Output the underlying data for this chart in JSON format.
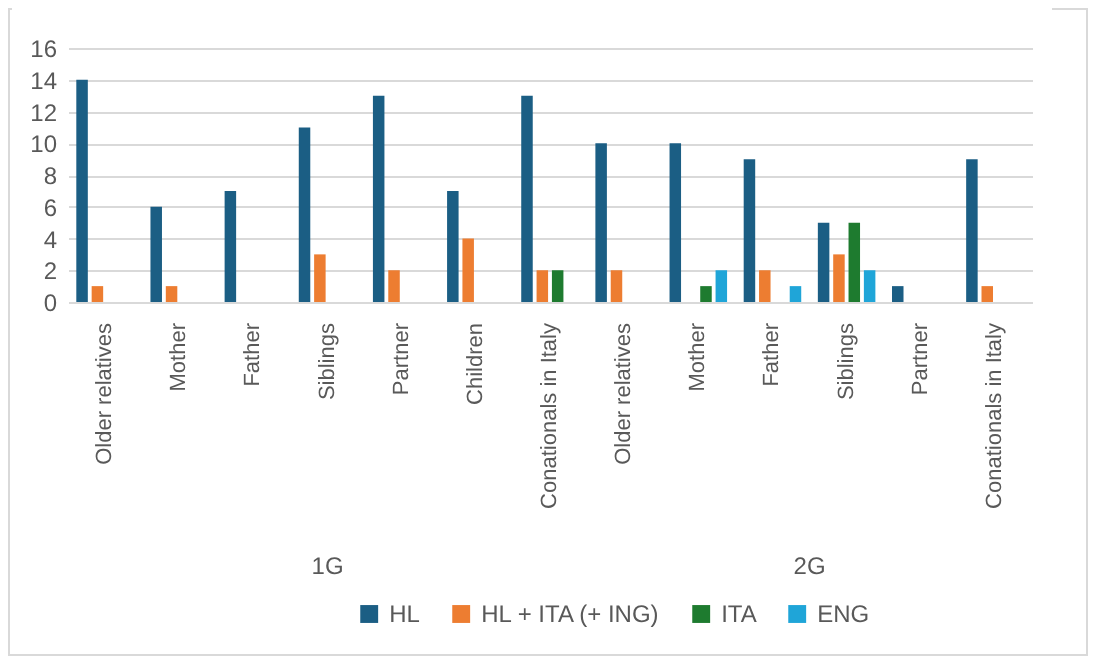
{
  "chart_data": {
    "type": "bar",
    "categories": [
      "Older relatives",
      "Mother",
      "Father",
      "Siblings",
      "Partner",
      "Children",
      "Conationals in Italy",
      "Older relatives",
      "Mother",
      "Father",
      "Siblings",
      "Partner",
      "Conationals in Italy"
    ],
    "series": [
      {
        "name": "HL",
        "color": "#1b5e84",
        "values": [
          14,
          6,
          7,
          11,
          13,
          7,
          13,
          10,
          10,
          9,
          5,
          1,
          9
        ]
      },
      {
        "name": "HL + ITA (+ ING)",
        "color": "#ed7d31",
        "values": [
          1,
          1,
          null,
          3,
          2,
          4,
          2,
          2,
          null,
          2,
          3,
          null,
          1
        ]
      },
      {
        "name": "ITA",
        "color": "#1e7b2f",
        "values": [
          null,
          null,
          null,
          null,
          null,
          null,
          2,
          null,
          1,
          null,
          5,
          null,
          null
        ]
      },
      {
        "name": "ENG",
        "color": "#1fa5d8",
        "values": [
          null,
          null,
          null,
          null,
          null,
          null,
          null,
          null,
          2,
          1,
          2,
          null,
          null
        ]
      }
    ],
    "annotations": [
      "1G",
      "2G"
    ],
    "ylim": [
      0,
      16
    ],
    "yticks": [
      0,
      2,
      4,
      6,
      8,
      10,
      12,
      14,
      16
    ],
    "grid": "y",
    "legend": "bottom"
  }
}
